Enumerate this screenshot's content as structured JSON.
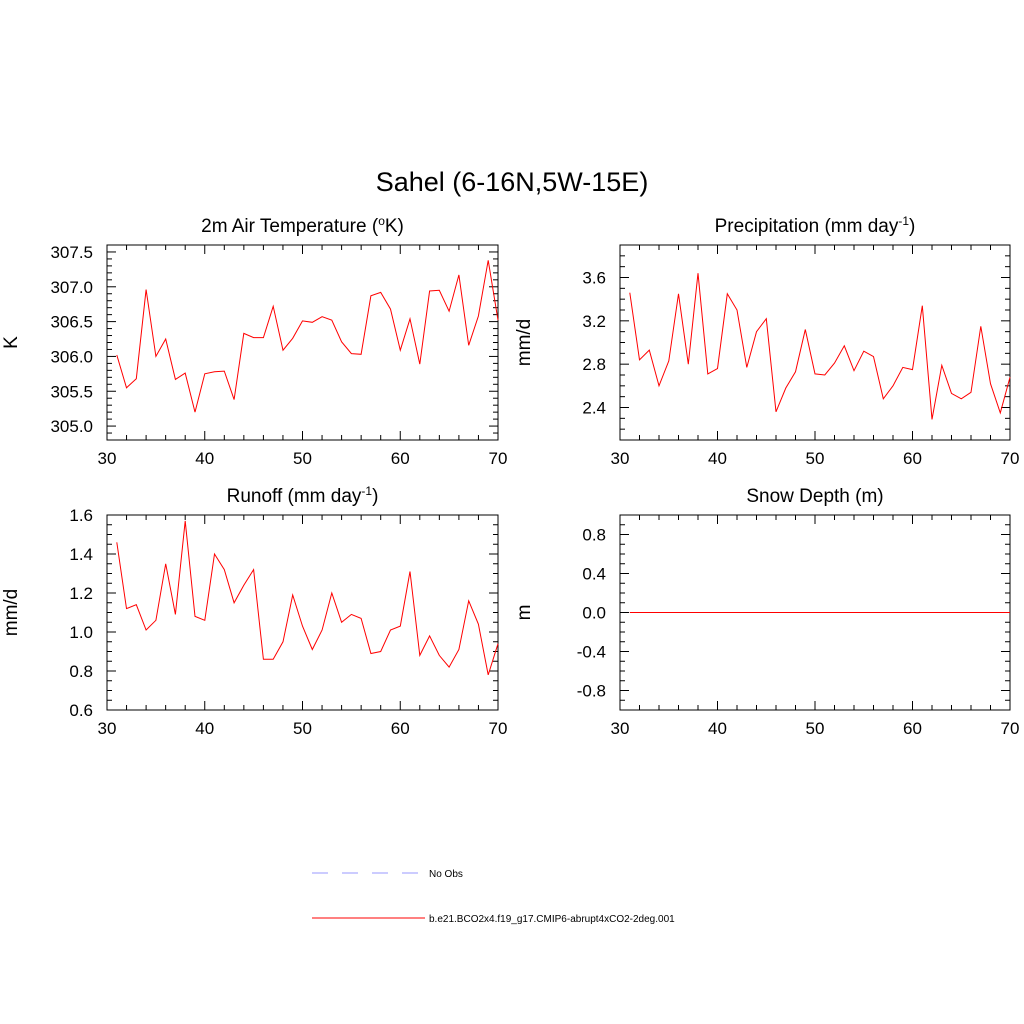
{
  "figure": {
    "title": "Sahel (6-16N,5W-15E)"
  },
  "colors": {
    "model_line": "#ff0000",
    "obs_line": "#9999ff",
    "axis": "#000000"
  },
  "legend": {
    "items": [
      {
        "label": "No Obs",
        "style": "dashed",
        "color": "#9999ff"
      },
      {
        "label": "b.e21.BCO2x4.f19_g17.CMIP6-abrupt4xCO2-2deg.001",
        "style": "solid",
        "color": "#ff0000"
      }
    ]
  },
  "chart_data": [
    {
      "type": "line",
      "title": "2m Air Temperature (",
      "title_sup": "o",
      "title_suffix": "K)",
      "ylabel": "K",
      "xlim": [
        30,
        70
      ],
      "ylim": [
        304.8,
        307.6
      ],
      "xticks": [
        30,
        40,
        50,
        60,
        70
      ],
      "yticks": [
        305.0,
        305.5,
        306.0,
        306.5,
        307.0,
        307.5
      ],
      "ytick_labels": [
        "305.0",
        "305.5",
        "306.0",
        "306.5",
        "307.0",
        "307.5"
      ],
      "yminor_step": 0.1,
      "x": [
        31,
        32,
        33,
        34,
        35,
        36,
        37,
        38,
        39,
        40,
        41,
        42,
        43,
        44,
        45,
        46,
        47,
        48,
        49,
        50,
        51,
        52,
        53,
        54,
        55,
        56,
        57,
        58,
        59,
        60,
        61,
        62,
        63,
        64,
        65,
        66,
        67,
        68,
        69,
        70
      ],
      "series": [
        {
          "name": "b.e21.BCO2x4.f19_g17.CMIP6-abrupt4xCO2-2deg.001",
          "values": [
            306.02,
            305.55,
            305.68,
            306.96,
            306.0,
            306.25,
            305.67,
            305.76,
            305.2,
            305.75,
            305.78,
            305.79,
            305.38,
            306.33,
            306.27,
            306.27,
            306.72,
            306.09,
            306.26,
            306.51,
            306.49,
            306.57,
            306.52,
            306.21,
            306.04,
            306.03,
            306.87,
            306.92,
            306.68,
            306.09,
            306.54,
            305.89,
            306.94,
            306.95,
            306.65,
            307.17,
            306.16,
            306.58,
            307.38,
            306.52
          ]
        }
      ]
    },
    {
      "type": "line",
      "title": "Precipitation (mm day",
      "title_sup": "-1",
      "title_suffix": ")",
      "ylabel": "mm/d",
      "xlim": [
        30,
        70
      ],
      "ylim": [
        2.1,
        3.9
      ],
      "xticks": [
        30,
        40,
        50,
        60,
        70
      ],
      "yticks": [
        2.4,
        2.8,
        3.2,
        3.6
      ],
      "ytick_labels": [
        "2.4",
        "2.8",
        "3.2",
        "3.6"
      ],
      "yminor_step": 0.1,
      "x": [
        31,
        32,
        33,
        34,
        35,
        36,
        37,
        38,
        39,
        40,
        41,
        42,
        43,
        44,
        45,
        46,
        47,
        48,
        49,
        50,
        51,
        52,
        53,
        54,
        55,
        56,
        57,
        58,
        59,
        60,
        61,
        62,
        63,
        64,
        65,
        66,
        67,
        68,
        69,
        70
      ],
      "series": [
        {
          "name": "b.e21.BCO2x4.f19_g17.CMIP6-abrupt4xCO2-2deg.001",
          "values": [
            3.46,
            2.84,
            2.93,
            2.6,
            2.83,
            3.45,
            2.8,
            3.64,
            2.71,
            2.76,
            3.45,
            3.3,
            2.77,
            3.1,
            3.22,
            2.36,
            2.58,
            2.73,
            3.12,
            2.71,
            2.7,
            2.81,
            2.97,
            2.74,
            2.92,
            2.87,
            2.48,
            2.6,
            2.77,
            2.75,
            3.34,
            2.29,
            2.79,
            2.53,
            2.48,
            2.54,
            3.15,
            2.62,
            2.35,
            2.68
          ]
        }
      ]
    },
    {
      "type": "line",
      "title": "Runoff (mm day",
      "title_sup": "-1",
      "title_suffix": ")",
      "ylabel": "mm/d",
      "xlim": [
        30,
        70
      ],
      "ylim": [
        0.6,
        1.6
      ],
      "xticks": [
        30,
        40,
        50,
        60,
        70
      ],
      "yticks": [
        0.6,
        0.8,
        1.0,
        1.2,
        1.4,
        1.6
      ],
      "ytick_labels": [
        "0.6",
        "0.8",
        "1.0",
        "1.2",
        "1.4",
        "1.6"
      ],
      "yminor_step": 0.05,
      "x": [
        31,
        32,
        33,
        34,
        35,
        36,
        37,
        38,
        39,
        40,
        41,
        42,
        43,
        44,
        45,
        46,
        47,
        48,
        49,
        50,
        51,
        52,
        53,
        54,
        55,
        56,
        57,
        58,
        59,
        60,
        61,
        62,
        63,
        64,
        65,
        66,
        67,
        68,
        69,
        70
      ],
      "series": [
        {
          "name": "b.e21.BCO2x4.f19_g17.CMIP6-abrupt4xCO2-2deg.001",
          "values": [
            1.46,
            1.12,
            1.14,
            1.01,
            1.06,
            1.35,
            1.09,
            1.57,
            1.08,
            1.06,
            1.4,
            1.32,
            1.15,
            1.24,
            1.32,
            0.86,
            0.86,
            0.95,
            1.19,
            1.03,
            0.91,
            1.01,
            1.2,
            1.05,
            1.09,
            1.07,
            0.89,
            0.9,
            1.01,
            1.03,
            1.31,
            0.88,
            0.98,
            0.88,
            0.82,
            0.91,
            1.16,
            1.04,
            0.78,
            0.94
          ]
        }
      ]
    },
    {
      "type": "line",
      "title": "Snow Depth (m)",
      "title_sup": "",
      "title_suffix": "",
      "ylabel": "m",
      "xlim": [
        30,
        70
      ],
      "ylim": [
        -1.0,
        1.0
      ],
      "xticks": [
        30,
        40,
        50,
        60,
        70
      ],
      "yticks": [
        -0.8,
        -0.4,
        0.0,
        0.4,
        0.8
      ],
      "ytick_labels": [
        "-0.8",
        "-0.4",
        "0.0",
        "0.4",
        "0.8"
      ],
      "yminor_step": 0.1,
      "x": [
        31,
        32,
        33,
        34,
        35,
        36,
        37,
        38,
        39,
        40,
        41,
        42,
        43,
        44,
        45,
        46,
        47,
        48,
        49,
        50,
        51,
        52,
        53,
        54,
        55,
        56,
        57,
        58,
        59,
        60,
        61,
        62,
        63,
        64,
        65,
        66,
        67,
        68,
        69,
        70
      ],
      "series": [
        {
          "name": "b.e21.BCO2x4.f19_g17.CMIP6-abrupt4xCO2-2deg.001",
          "values": [
            0,
            0,
            0,
            0,
            0,
            0,
            0,
            0,
            0,
            0,
            0,
            0,
            0,
            0,
            0,
            0,
            0,
            0,
            0,
            0,
            0,
            0,
            0,
            0,
            0,
            0,
            0,
            0,
            0,
            0,
            0,
            0,
            0,
            0,
            0,
            0,
            0,
            0,
            0,
            0
          ]
        }
      ]
    }
  ]
}
